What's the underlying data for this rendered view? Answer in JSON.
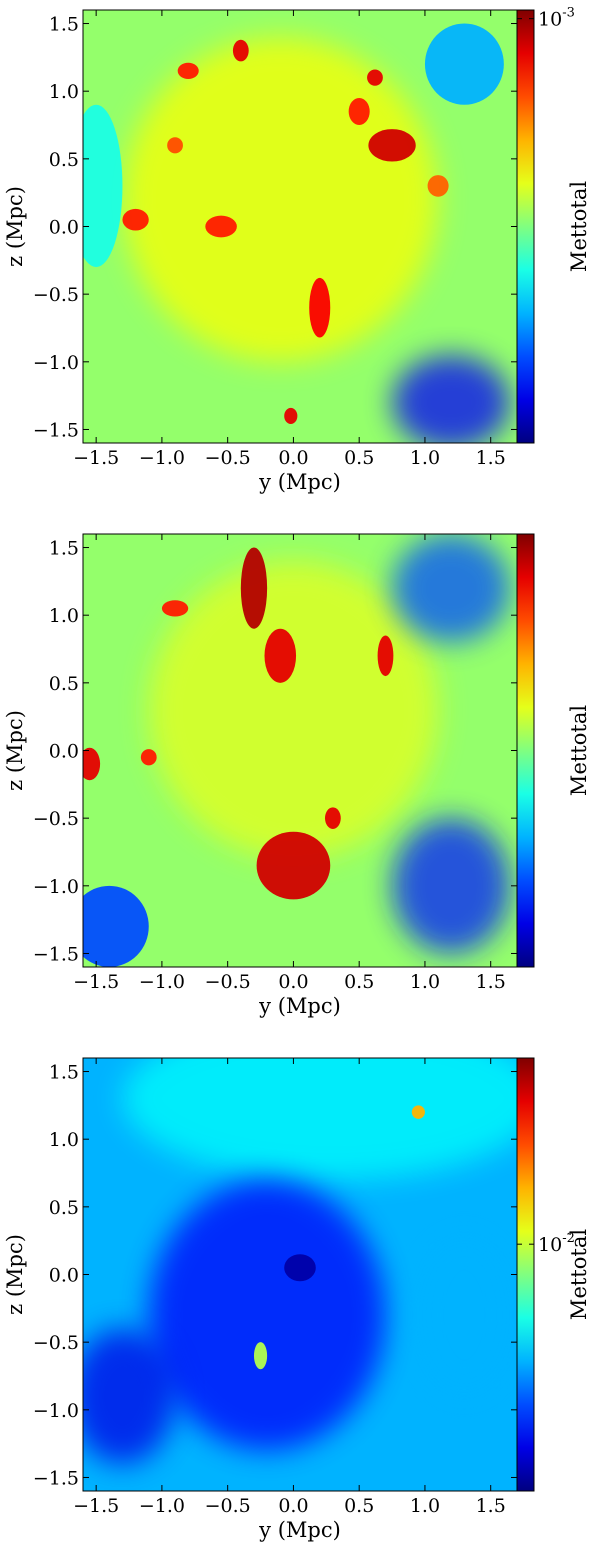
{
  "chart_data": [
    {
      "type": "heatmap",
      "title": "",
      "xlabel": "y  (Mpc)",
      "ylabel": "z  (Mpc)",
      "colorbar_label": "Mettotal",
      "colorbar_scale": "log",
      "colorbar_ticks": [
        {
          "base": "10",
          "exp": "-3",
          "value": 0.001
        }
      ],
      "colormap": "jet",
      "xlim": [
        -1.6,
        1.7
      ],
      "ylim": [
        -1.6,
        1.6
      ],
      "xticks": [
        "−1.5",
        "−1.0",
        "−0.5",
        "0.0",
        "0.5",
        "1.0",
        "1.5"
      ],
      "xtick_values": [
        -1.5,
        -1.0,
        -0.5,
        0.0,
        0.5,
        1.0,
        1.5
      ],
      "yticks": [
        "−1.5",
        "−1.0",
        "−0.5",
        "0.0",
        "0.5",
        "1.0",
        "1.5"
      ],
      "ytick_values": [
        -1.5,
        -1.0,
        -0.5,
        0.0,
        0.5,
        1.0,
        1.5
      ],
      "features": [
        {
          "y": -0.1,
          "z": 0.2,
          "level": 0.62,
          "ry": 1.2,
          "rz": 1.2
        },
        {
          "y": 1.2,
          "z": -1.3,
          "level": 0.12,
          "ry": 0.45,
          "rz": 0.35
        },
        {
          "y": 1.3,
          "z": 1.2,
          "level": 0.3,
          "ry": 0.3,
          "rz": 0.3
        },
        {
          "y": -1.5,
          "z": 0.3,
          "level": 0.4,
          "ry": 0.2,
          "rz": 0.6
        },
        {
          "y": 0.2,
          "z": -0.6,
          "level": 0.88,
          "ry": 0.08,
          "rz": 0.22
        },
        {
          "y": -0.8,
          "z": 1.15,
          "level": 0.85,
          "ry": 0.08,
          "rz": 0.06
        },
        {
          "y": -0.4,
          "z": 1.3,
          "level": 0.9,
          "ry": 0.06,
          "rz": 0.08
        },
        {
          "y": 0.62,
          "z": 1.1,
          "level": 0.9,
          "ry": 0.06,
          "rz": 0.06
        },
        {
          "y": 0.75,
          "z": 0.6,
          "level": 0.92,
          "ry": 0.18,
          "rz": 0.12
        },
        {
          "y": 0.5,
          "z": 0.85,
          "level": 0.85,
          "ry": 0.08,
          "rz": 0.1
        },
        {
          "y": -1.2,
          "z": 0.05,
          "level": 0.85,
          "ry": 0.1,
          "rz": 0.08
        },
        {
          "y": -0.55,
          "z": 0.0,
          "level": 0.85,
          "ry": 0.12,
          "rz": 0.08
        },
        {
          "y": -0.02,
          "z": -1.4,
          "level": 0.9,
          "ry": 0.05,
          "rz": 0.06
        },
        {
          "y": -0.9,
          "z": 0.6,
          "level": 0.8,
          "ry": 0.06,
          "rz": 0.06
        },
        {
          "y": 1.1,
          "z": 0.3,
          "level": 0.78,
          "ry": 0.08,
          "rz": 0.08
        }
      ]
    },
    {
      "type": "heatmap",
      "title": "",
      "xlabel": "y  (Mpc)",
      "ylabel": "z  (Mpc)",
      "colorbar_label": "Mettotal",
      "colorbar_scale": "log",
      "colorbar_ticks": [],
      "colormap": "jet",
      "xlim": [
        -1.6,
        1.7
      ],
      "ylim": [
        -1.6,
        1.6
      ],
      "xticks": [
        "−1.5",
        "−1.0",
        "−0.5",
        "0.0",
        "0.5",
        "1.0",
        "1.5"
      ],
      "xtick_values": [
        -1.5,
        -1.0,
        -0.5,
        0.0,
        0.5,
        1.0,
        1.5
      ],
      "yticks": [
        "−1.5",
        "−1.0",
        "−0.5",
        "0.0",
        "0.5",
        "1.0",
        "1.5"
      ],
      "ytick_values": [
        -1.5,
        -1.0,
        -0.5,
        0.0,
        0.5,
        1.0,
        1.5
      ],
      "features": [
        {
          "y": 0.0,
          "z": 0.3,
          "level": 0.6,
          "ry": 1.1,
          "rz": 1.1
        },
        {
          "y": 1.2,
          "z": 1.2,
          "level": 0.2,
          "ry": 0.45,
          "rz": 0.4
        },
        {
          "y": 1.2,
          "z": -1.0,
          "level": 0.15,
          "ry": 0.45,
          "rz": 0.5
        },
        {
          "y": -1.4,
          "z": -1.3,
          "level": 0.2,
          "ry": 0.3,
          "rz": 0.3
        },
        {
          "y": 0.0,
          "z": -0.85,
          "level": 0.92,
          "ry": 0.28,
          "rz": 0.25
        },
        {
          "y": -0.3,
          "z": 1.2,
          "level": 0.95,
          "ry": 0.1,
          "rz": 0.3
        },
        {
          "y": -0.1,
          "z": 0.7,
          "level": 0.9,
          "ry": 0.12,
          "rz": 0.2
        },
        {
          "y": -0.9,
          "z": 1.05,
          "level": 0.85,
          "ry": 0.1,
          "rz": 0.06
        },
        {
          "y": -1.55,
          "z": -0.1,
          "level": 0.9,
          "ry": 0.08,
          "rz": 0.12
        },
        {
          "y": 0.7,
          "z": 0.7,
          "level": 0.9,
          "ry": 0.06,
          "rz": 0.15
        },
        {
          "y": -1.1,
          "z": -0.05,
          "level": 0.85,
          "ry": 0.06,
          "rz": 0.06
        },
        {
          "y": 0.3,
          "z": -0.5,
          "level": 0.9,
          "ry": 0.06,
          "rz": 0.08
        }
      ]
    },
    {
      "type": "heatmap",
      "title": "",
      "xlabel": "y  (Mpc)",
      "ylabel": "z  (Mpc)",
      "colorbar_label": "Mettotal",
      "colorbar_scale": "log",
      "colorbar_ticks": [
        {
          "base": "10",
          "exp": "-2",
          "value": 0.01
        }
      ],
      "colormap": "jet",
      "xlim": [
        -1.6,
        1.7
      ],
      "ylim": [
        -1.6,
        1.6
      ],
      "xticks": [
        "−1.5",
        "−1.0",
        "−0.5",
        "0.0",
        "0.5",
        "1.0",
        "1.5"
      ],
      "xtick_values": [
        -1.5,
        -1.0,
        -0.5,
        0.0,
        0.5,
        1.0,
        1.5
      ],
      "yticks": [
        "−1.5",
        "−1.0",
        "−0.5",
        "0.0",
        "0.5",
        "1.0",
        "1.5"
      ],
      "ytick_values": [
        -1.5,
        -1.0,
        -0.5,
        0.0,
        0.5,
        1.0,
        1.5
      ],
      "features": [
        {
          "y": 0.3,
          "z": 1.3,
          "level": 0.38,
          "ry": 1.6,
          "rz": 0.6
        },
        {
          "y": -0.2,
          "z": -0.3,
          "level": 0.12,
          "ry": 0.9,
          "rz": 1.0
        },
        {
          "y": 0.05,
          "z": 0.05,
          "level": 0.04,
          "ry": 0.12,
          "rz": 0.1
        },
        {
          "y": -1.3,
          "z": -0.9,
          "level": 0.1,
          "ry": 0.4,
          "rz": 0.5
        },
        {
          "y": 1.3,
          "z": -0.3,
          "level": 0.3,
          "ry": 0.4,
          "rz": 0.6
        },
        {
          "y": 0.95,
          "z": 1.2,
          "level": 0.7,
          "ry": 0.05,
          "rz": 0.05
        },
        {
          "y": -0.25,
          "z": -0.6,
          "level": 0.55,
          "ry": 0.05,
          "rz": 0.1
        }
      ]
    }
  ]
}
